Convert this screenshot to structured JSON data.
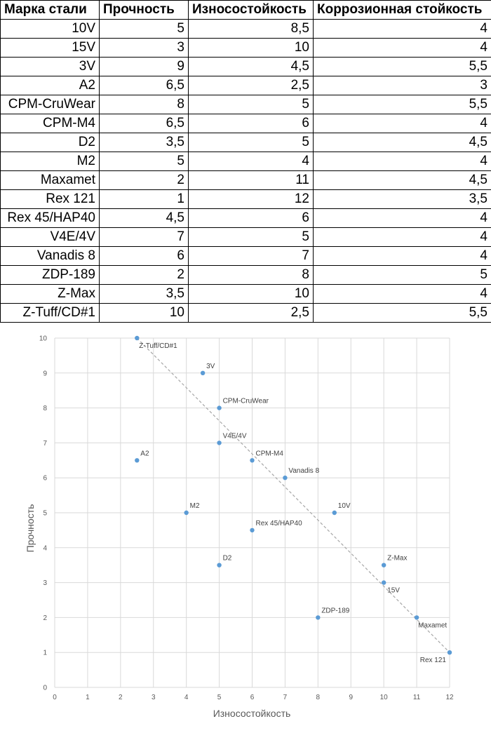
{
  "table": {
    "headers": [
      "Марка стали",
      "Прочность",
      "Износостойкость",
      "Коррозионная стойкость"
    ],
    "rows": [
      [
        "10V",
        "5",
        "8,5",
        "4"
      ],
      [
        "15V",
        "3",
        "10",
        "4"
      ],
      [
        "3V",
        "9",
        "4,5",
        "5,5"
      ],
      [
        "A2",
        "6,5",
        "2,5",
        "3"
      ],
      [
        "CPM-CruWear",
        "8",
        "5",
        "5,5"
      ],
      [
        "CPM-M4",
        "6,5",
        "6",
        "4"
      ],
      [
        "D2",
        "3,5",
        "5",
        "4,5"
      ],
      [
        "M2",
        "5",
        "4",
        "4"
      ],
      [
        "Maxamet",
        "2",
        "11",
        "4,5"
      ],
      [
        "Rex 121",
        "1",
        "12",
        "3,5"
      ],
      [
        "Rex 45/HAP40",
        "4,5",
        "6",
        "4"
      ],
      [
        "V4E/4V",
        "7",
        "5",
        "4"
      ],
      [
        "Vanadis 8",
        "6",
        "7",
        "4"
      ],
      [
        "ZDP-189",
        "2",
        "8",
        "5"
      ],
      [
        "Z-Max",
        "3,5",
        "10",
        "4"
      ],
      [
        "Z-Tuff/CD#1",
        "10",
        "2,5",
        "5,5"
      ]
    ]
  },
  "chart_data": {
    "type": "scatter",
    "xlabel": "Износостойкость",
    "ylabel": "Прочность",
    "xlim": [
      0,
      12
    ],
    "ylim": [
      0,
      10
    ],
    "xticks": [
      "0",
      "1",
      "2",
      "3",
      "4",
      "5",
      "6",
      "7",
      "8",
      "9",
      "10",
      "11",
      "12"
    ],
    "yticks": [
      "0",
      "1",
      "2",
      "3",
      "4",
      "5",
      "6",
      "7",
      "8",
      "9",
      "10"
    ],
    "grid": true,
    "point_color": "#5b9bd5",
    "trendline": {
      "style": "dashed",
      "color": "#a6a6a6",
      "from": [
        2.5,
        10
      ],
      "to": [
        12,
        1
      ]
    },
    "points": [
      {
        "label": "10V",
        "x": 8.5,
        "y": 5
      },
      {
        "label": "15V",
        "x": 10,
        "y": 3
      },
      {
        "label": "3V",
        "x": 4.5,
        "y": 9
      },
      {
        "label": "A2",
        "x": 2.5,
        "y": 6.5
      },
      {
        "label": "CPM-CruWear",
        "x": 5,
        "y": 8
      },
      {
        "label": "CPM-M4",
        "x": 6,
        "y": 6.5
      },
      {
        "label": "D2",
        "x": 5,
        "y": 3.5
      },
      {
        "label": "M2",
        "x": 4,
        "y": 5
      },
      {
        "label": "Maxamet",
        "x": 11,
        "y": 2
      },
      {
        "label": "Rex 121",
        "x": 12,
        "y": 1
      },
      {
        "label": "Rex 45/HAP40",
        "x": 6,
        "y": 4.5
      },
      {
        "label": "V4E/4V",
        "x": 5,
        "y": 7
      },
      {
        "label": "Vanadis 8",
        "x": 7,
        "y": 6
      },
      {
        "label": "ZDP-189",
        "x": 8,
        "y": 2
      },
      {
        "label": "Z-Max",
        "x": 10,
        "y": 3.5
      },
      {
        "label": "Z-Tuff/CD#1",
        "x": 2.5,
        "y": 10
      }
    ]
  }
}
